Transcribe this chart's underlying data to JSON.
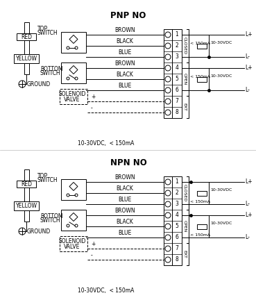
{
  "title_pnp": "PNP NO",
  "title_npn": "NPN NO",
  "bg_color": "#ffffff",
  "lc": "#000000",
  "wire_labels": [
    "BROWN",
    "BLACK",
    "BLUE",
    "BROWN",
    "BLACK",
    "BLUE"
  ],
  "terminal_numbers": [
    "1",
    "2",
    "3",
    "4",
    "5",
    "6",
    "7",
    "8"
  ],
  "closed_label": "CLOSED",
  "open_label": "OPEN",
  "ext_label": "EXT",
  "solenoid_label": [
    "SOLENOID",
    "VALVE"
  ],
  "voltage_label": "10-30VDC,  < 150mA",
  "top_switch_label": [
    "TOP",
    "SWITCH"
  ],
  "bottom_switch_label": [
    "BOTTOM",
    "SWITCH"
  ],
  "red_label": "RED",
  "yellow_label": "YELLOW",
  "ground_label": "GROUND",
  "lplus": "L+",
  "lminus": "L-",
  "ma_label": "< 150mA",
  "vdc_label": "10-30VDC"
}
